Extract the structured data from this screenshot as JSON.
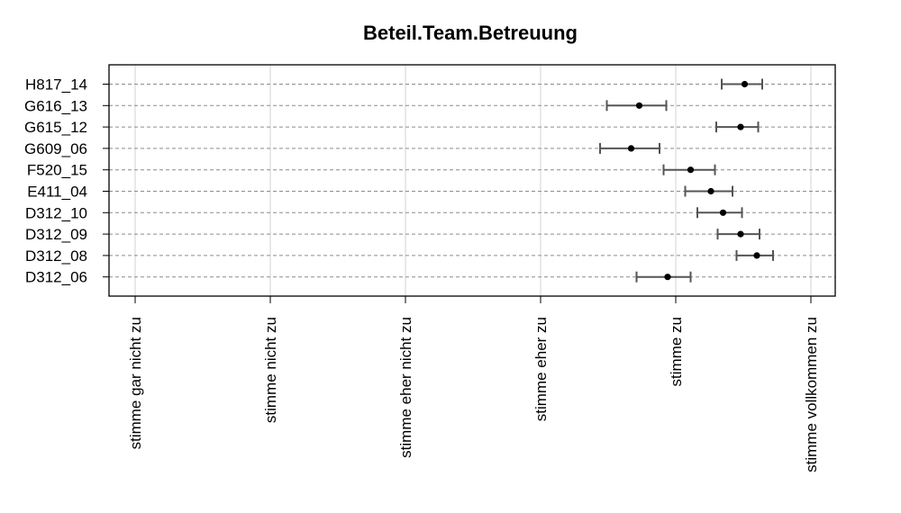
{
  "chart_data": {
    "type": "scatter",
    "title": "Beteil.Team.Betreuung",
    "xlabel": "",
    "ylabel": "",
    "xlim": [
      0.5,
      6.2
    ],
    "x_ticks": [
      1,
      2,
      3,
      4,
      5,
      6
    ],
    "x_tick_labels": [
      "stimme gar nicht zu",
      "stimme nicht zu",
      "stimme eher nicht zu",
      "stimme eher zu",
      "stimme zu",
      "stimme vollkommen zu"
    ],
    "grid": true,
    "legend": "none",
    "categories": [
      "H817_14",
      "G616_13",
      "G615_12",
      "G609_06",
      "F520_15",
      "E411_04",
      "D312_10",
      "D312_09",
      "D312_08",
      "D312_06"
    ],
    "series": [
      {
        "estimate": [
          5.51,
          4.73,
          5.48,
          4.67,
          5.11,
          5.26,
          5.35,
          5.48,
          5.6,
          4.94
        ],
        "lower": [
          5.34,
          4.49,
          5.3,
          4.44,
          4.91,
          5.07,
          5.16,
          5.31,
          5.45,
          4.71
        ],
        "upper": [
          5.64,
          4.93,
          5.61,
          4.88,
          5.29,
          5.42,
          5.49,
          5.62,
          5.72,
          5.11
        ]
      }
    ]
  }
}
